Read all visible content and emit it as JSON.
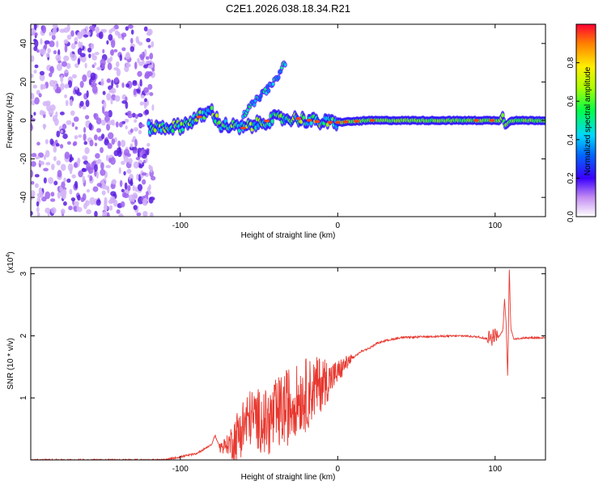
{
  "figure_title": "C2E1.2026.038.18.34.R21",
  "chart_data": [
    {
      "type": "heatmap",
      "title": "C2E1.2026.038.18.34.R21",
      "xlabel": "Height of straight line (km)",
      "ylabel": "Frequency (Hz)",
      "xlim": [
        -195,
        132
      ],
      "ylim": [
        -50,
        50
      ],
      "x_ticks": [
        -100,
        0,
        100
      ],
      "x_tick_labels": [
        "-100",
        "0",
        "100"
      ],
      "y_ticks": [
        -40,
        -20,
        0,
        20,
        40
      ],
      "y_tick_labels": [
        "-40",
        "-20",
        "0",
        "20",
        "40"
      ],
      "colorbar": {
        "label": "Normalized spectral amplitude",
        "range": [
          0,
          1
        ],
        "ticks": [
          0.0,
          0.2,
          0.4,
          0.6,
          0.8
        ],
        "tick_labels": [
          "0.0",
          "0.2",
          "0.4",
          "0.6",
          "0.8"
        ]
      },
      "series": [
        {
          "name": "noise",
          "x_range": [
            -195,
            -117
          ],
          "y_range": [
            -50,
            50
          ],
          "amplitude": 0.1
        },
        {
          "name": "main band",
          "x": [
            -120,
            -100,
            -80,
            -75,
            -60,
            -40,
            -25,
            -10,
            0,
            20,
            50,
            90,
            103,
            105,
            106,
            110,
            132
          ],
          "y": [
            -4,
            -3,
            5,
            -2,
            -4,
            1,
            1,
            -1,
            -1,
            0,
            0,
            0,
            0,
            3,
            -3,
            0,
            0
          ]
        },
        {
          "name": "upper branch",
          "x": [
            -60,
            -50,
            -40,
            -33
          ],
          "y": [
            3,
            12,
            20,
            31
          ]
        }
      ]
    },
    {
      "type": "line",
      "xlabel": "Height of straight line (km)",
      "ylabel": "SNR (10 * v/v)",
      "scale_label": "(x10",
      "scale_exp": "4",
      "xlim": [
        -195,
        132
      ],
      "ylim": [
        0,
        3.1
      ],
      "x_ticks": [
        -100,
        0,
        100
      ],
      "x_tick_labels": [
        "-100",
        "0",
        "100"
      ],
      "y_ticks": [
        1,
        2,
        3
      ],
      "y_tick_labels": [
        "1",
        "2",
        "3"
      ],
      "series": [
        {
          "name": "SNR",
          "color": "#e8382f",
          "x": [
            -195,
            -150,
            -110,
            -100,
            -90,
            -80,
            -78,
            -75,
            -70,
            -65,
            -60,
            -55,
            -50,
            -45,
            -40,
            -35,
            -30,
            -25,
            -20,
            -15,
            -10,
            -5,
            0,
            5,
            10,
            15,
            20,
            25,
            30,
            40,
            60,
            80,
            90,
            95,
            100,
            103,
            105,
            106,
            107,
            108,
            109,
            110,
            112,
            120,
            132
          ],
          "y": [
            0.0,
            0.0,
            0.0,
            0.05,
            0.1,
            0.25,
            0.4,
            0.2,
            0.25,
            0.35,
            0.55,
            0.7,
            0.65,
            0.6,
            0.7,
            0.8,
            0.9,
            1.0,
            1.05,
            1.15,
            1.25,
            1.3,
            1.4,
            1.55,
            1.65,
            1.75,
            1.8,
            1.88,
            1.92,
            1.97,
            1.99,
            2.0,
            1.98,
            1.95,
            2.02,
            2.0,
            2.1,
            2.6,
            2.2,
            1.3,
            3.1,
            2.1,
            1.95,
            1.97,
            1.97
          ],
          "bursts": [
            {
              "x": [
                -75,
                -70,
                -65,
                -60,
                -55,
                -50,
                -45,
                -40,
                -35,
                -30,
                -25,
                -20,
                -15,
                -10,
                -5,
                0,
                5,
                10
              ],
              "amp": [
                0.1,
                0.15,
                0.4,
                0.5,
                0.45,
                0.5,
                0.55,
                0.6,
                0.6,
                0.65,
                0.55,
                0.6,
                0.5,
                0.45,
                0.3,
                0.2,
                0.12,
                0.06
              ]
            },
            {
              "x": [
                95,
                98,
                100,
                102
              ],
              "amp": [
                0.1,
                0.15,
                0.1,
                0.08
              ]
            }
          ]
        }
      ]
    }
  ]
}
